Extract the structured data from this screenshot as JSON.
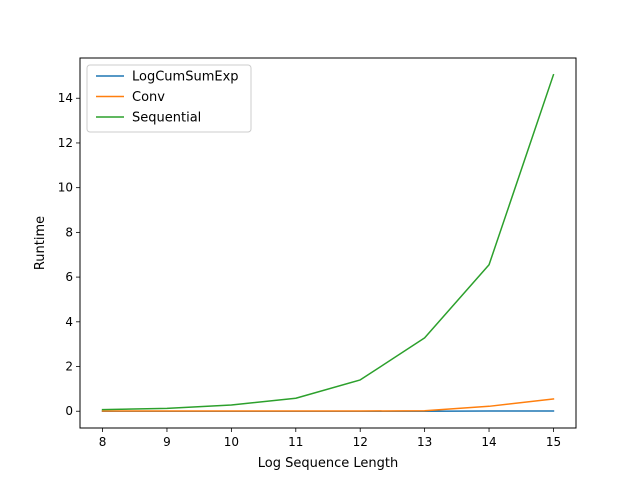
{
  "chart_data": {
    "type": "line",
    "title": "",
    "xlabel": "Log Sequence Length",
    "ylabel": "Runtime",
    "x": [
      8,
      9,
      10,
      11,
      12,
      13,
      14,
      15
    ],
    "xticks": [
      8,
      9,
      10,
      11,
      12,
      13,
      14,
      15
    ],
    "xtick_labels": [
      "8",
      "9",
      "10",
      "11",
      "12",
      "13",
      "14",
      "15"
    ],
    "yticks": [
      0,
      2,
      4,
      6,
      8,
      10,
      12,
      14
    ],
    "ytick_labels": [
      "0",
      "2",
      "4",
      "6",
      "8",
      "10",
      "12",
      "14"
    ],
    "xlim": [
      7.65,
      15.35
    ],
    "ylim": [
      -0.75,
      15.8
    ],
    "grid": false,
    "legend_position": "top-left",
    "series": [
      {
        "name": "LogCumSumExp",
        "color": "#1f77b4",
        "values": [
          0.0,
          0.0,
          0.0,
          0.0,
          0.0,
          0.0,
          0.01,
          0.01
        ]
      },
      {
        "name": "Conv",
        "color": "#ff7f0e",
        "values": [
          0.01,
          0.01,
          0.01,
          0.01,
          0.01,
          0.02,
          0.22,
          0.55
        ]
      },
      {
        "name": "Sequential",
        "color": "#2ca02c",
        "values": [
          0.07,
          0.13,
          0.28,
          0.58,
          1.4,
          3.28,
          6.55,
          15.05
        ]
      }
    ]
  }
}
